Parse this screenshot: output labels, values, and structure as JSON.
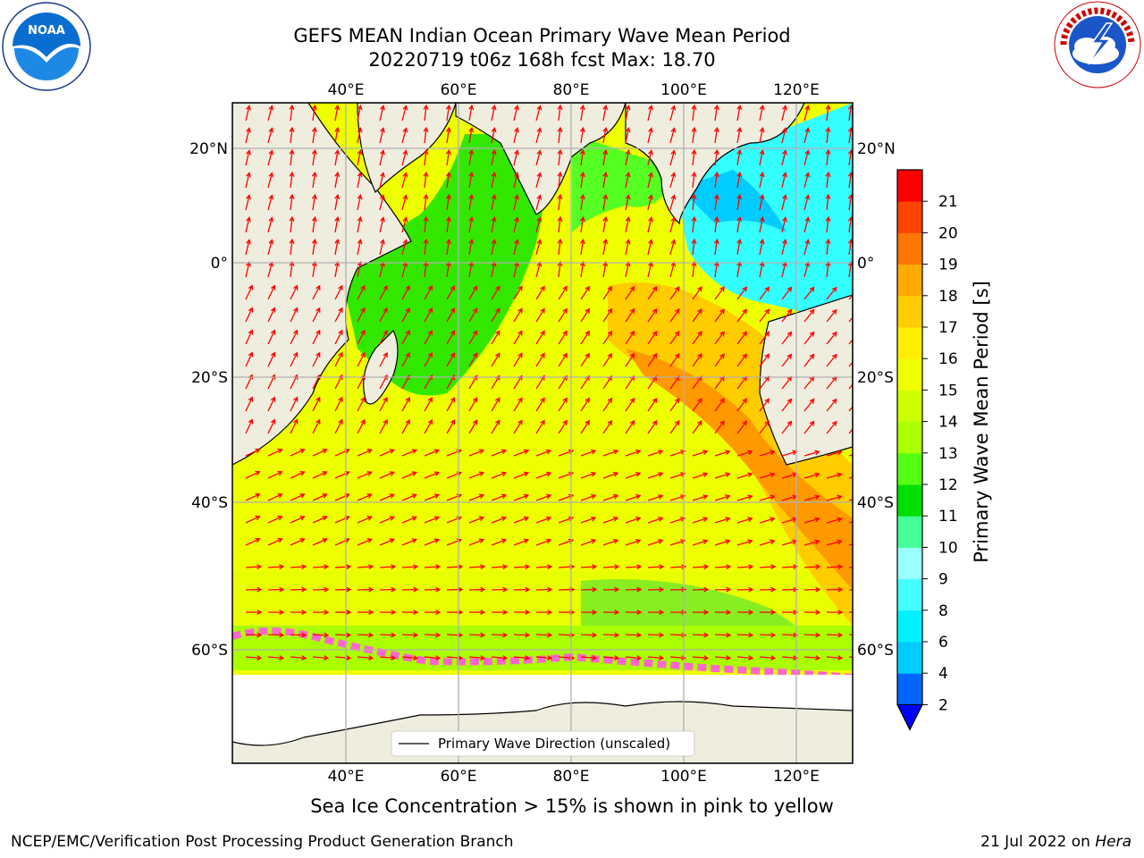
{
  "title_line1": "GEFS MEAN Indian Ocean Primary Wave Mean Period",
  "title_line2": "20220719 t06z 168h fcst   Max: 18.70",
  "lon_ticks": [
    "40°E",
    "60°E",
    "80°E",
    "100°E",
    "120°E"
  ],
  "lat_ticks": [
    "20°N",
    "0°",
    "20°S",
    "40°S",
    "60°S"
  ],
  "colorbar": {
    "label": "Primary Wave Mean Period [s]",
    "ticks": [
      "2",
      "4",
      "6",
      "8",
      "9",
      "10",
      "11",
      "12",
      "13",
      "14",
      "15",
      "16",
      "17",
      "18",
      "19",
      "20",
      "21"
    ],
    "colors": [
      "#0066ff",
      "#00ccff",
      "#00f0ff",
      "#44ffff",
      "#99ffff",
      "#44ff99",
      "#00e000",
      "#55ff11",
      "#aaff00",
      "#ccff00",
      "#eeff00",
      "#ffee00",
      "#ffcc00",
      "#ffaa00",
      "#ff7700",
      "#ff4400",
      "#ff0000"
    ],
    "under_color": "#0000ff"
  },
  "legend_label": "Primary Wave Direction (unscaled)",
  "ice_note": "Sea Ice Concentration > 15% is shown in pink to yellow",
  "footer_left": "NCEP/EMC/Verification Post Processing Product Generation Branch",
  "footer_right_date": "21 Jul 2022 on",
  "footer_right_machine": "Hera",
  "logos": {
    "left": "noaa-logo",
    "right": "nws-logo"
  },
  "map": {
    "land_color": "#efedde",
    "ice_edge_color": "#ff66cc",
    "arrow_color": "#ff0000",
    "grid_color": "#b0b0b0"
  }
}
